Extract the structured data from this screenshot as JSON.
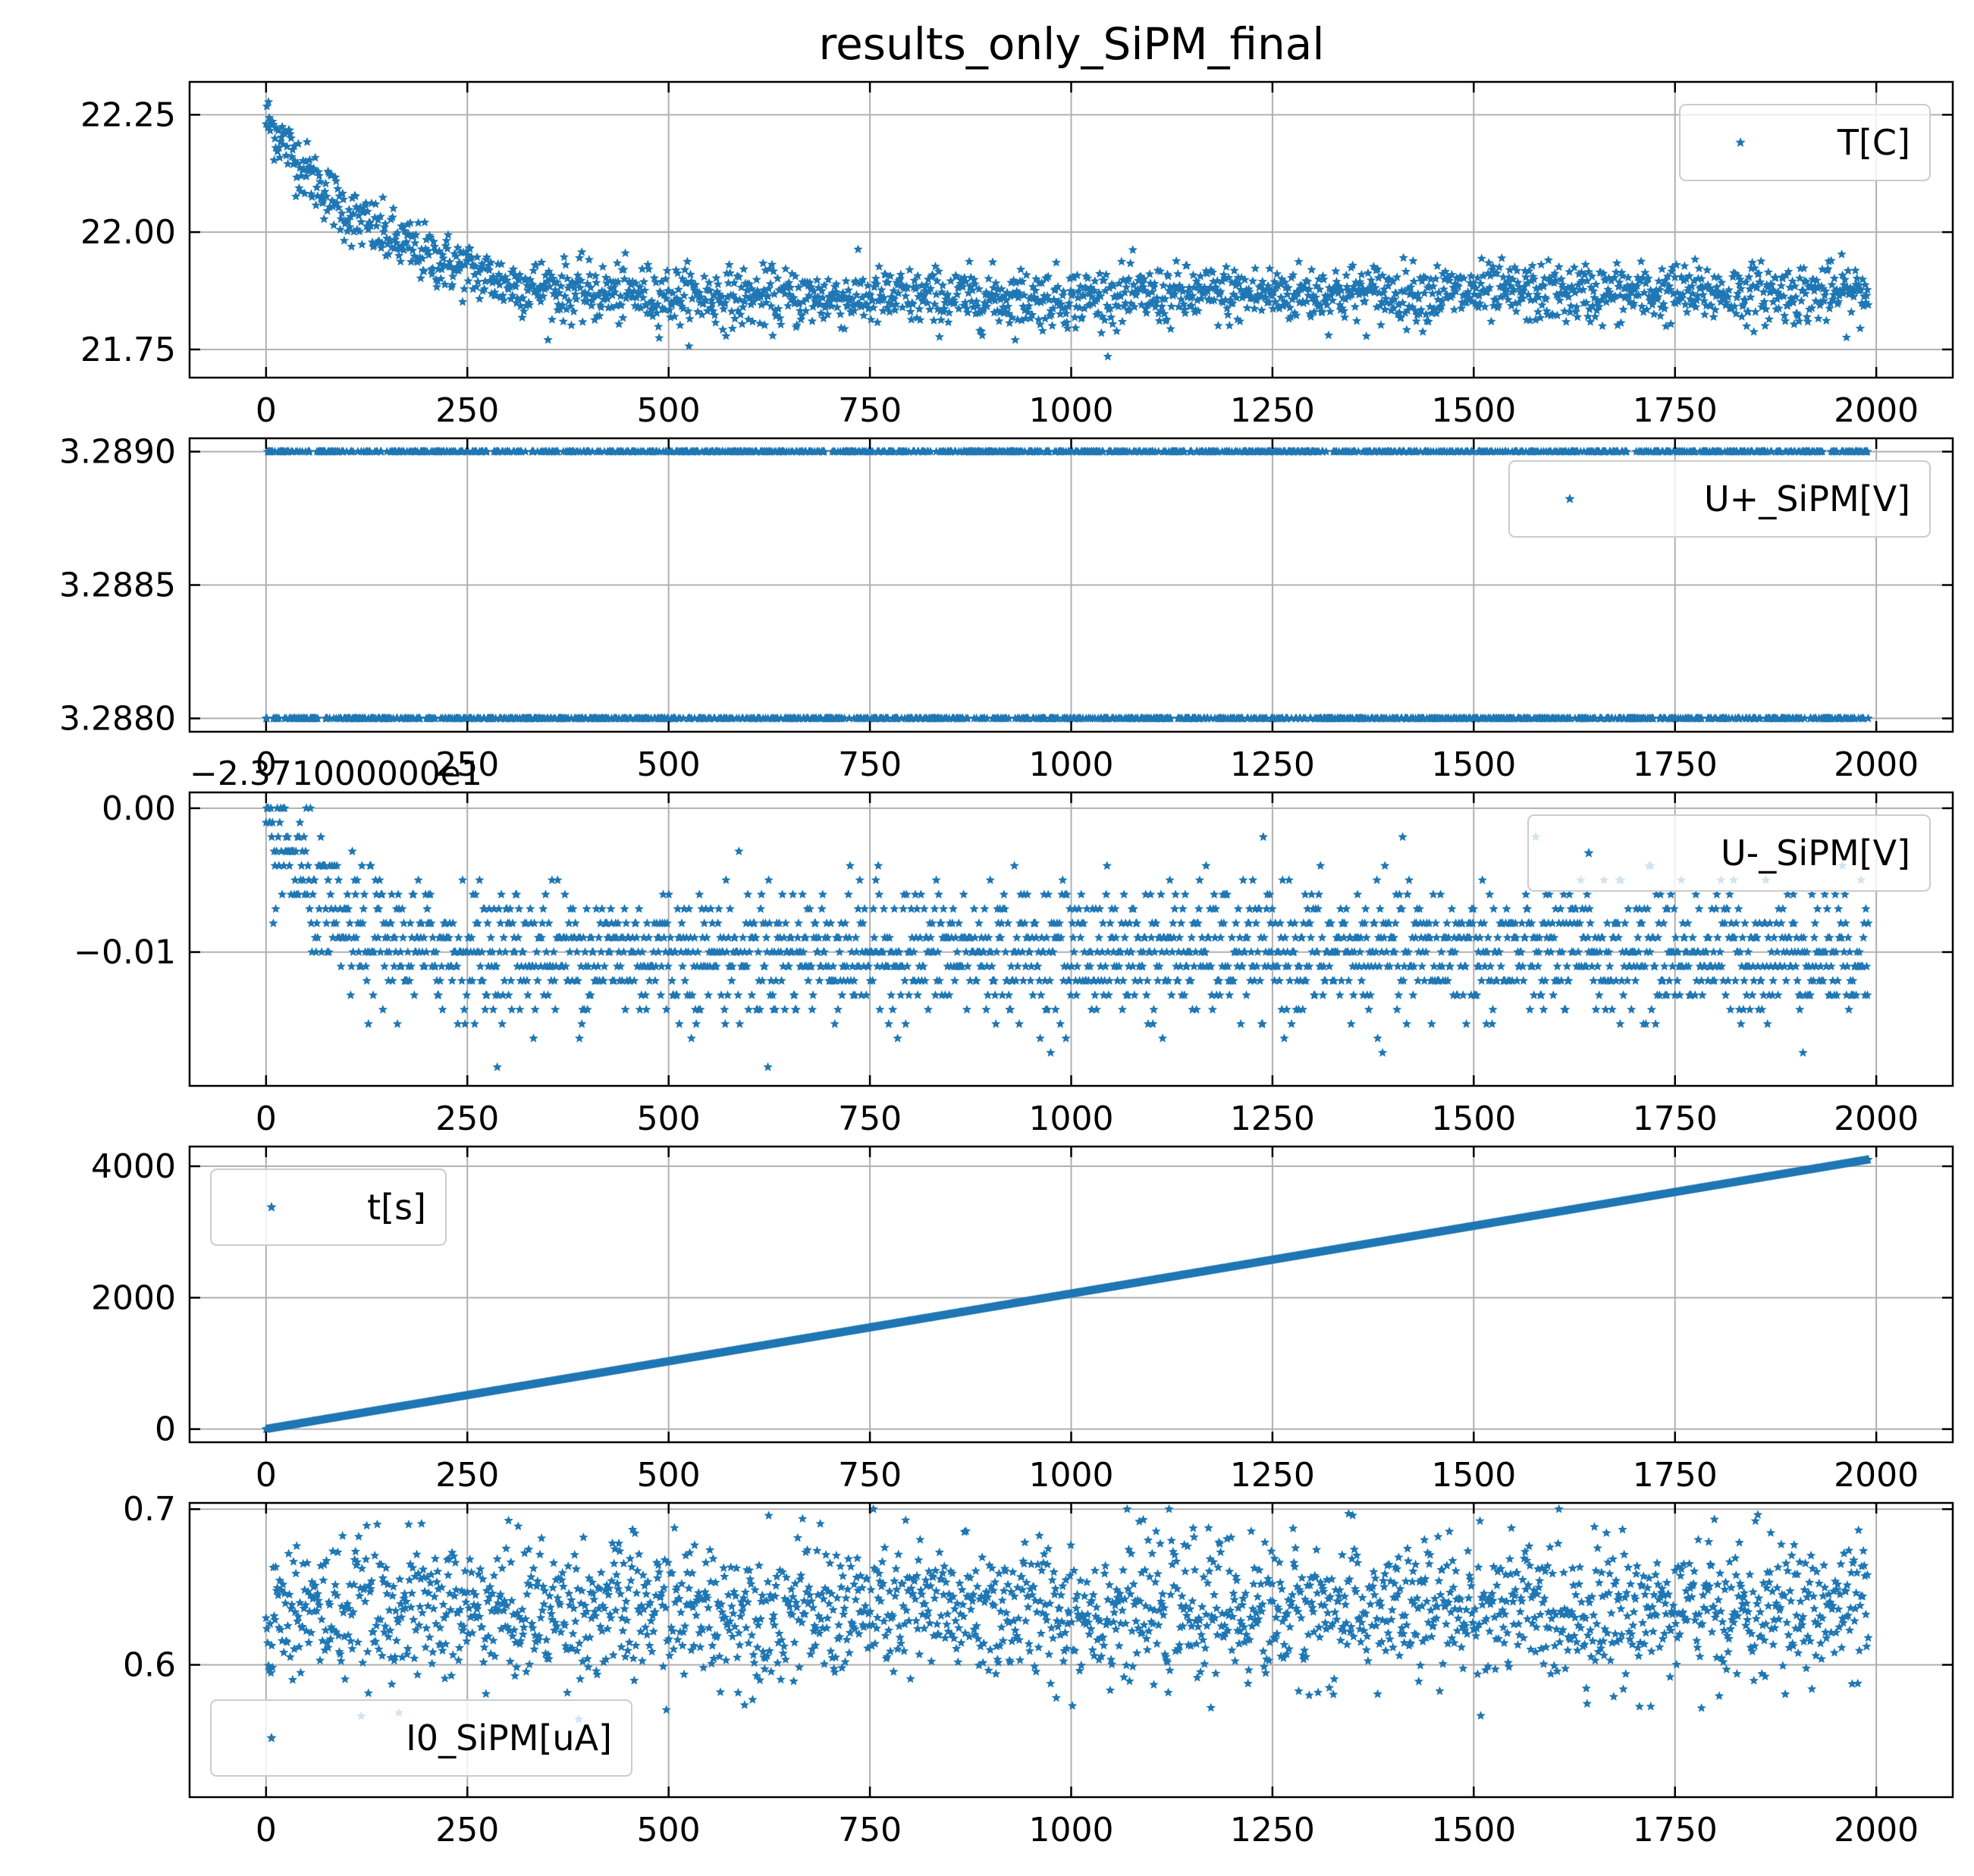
{
  "figure": {
    "title": "results_only_SiPM_final",
    "marker_color": "#1f77b4"
  },
  "chart_data": [
    {
      "type": "scatter",
      "marker": "star",
      "legend": "T[C]",
      "legend_placement": "upper right",
      "grid": true,
      "xlim": [
        -95,
        2095
      ],
      "ylim": [
        21.69,
        22.32
      ],
      "xticks": [
        0,
        250,
        500,
        750,
        1000,
        1250,
        1500,
        1750,
        2000
      ],
      "xtick_labels": [
        "0",
        "250",
        "500",
        "750",
        "1000",
        "1250",
        "1500",
        "1750",
        "2000"
      ],
      "yticks": [
        21.75,
        22.0,
        22.25
      ],
      "ytick_labels": [
        "21.75",
        "22.00",
        "22.25"
      ],
      "n_points": 1990,
      "x_range": [
        0,
        1990
      ],
      "trend": [
        [
          0,
          22.24
        ],
        [
          50,
          22.13
        ],
        [
          100,
          22.04
        ],
        [
          150,
          21.99
        ],
        [
          200,
          21.95
        ],
        [
          250,
          21.92
        ],
        [
          300,
          21.89
        ],
        [
          400,
          21.87
        ],
        [
          600,
          21.86
        ],
        [
          1000,
          21.86
        ],
        [
          1300,
          21.87
        ],
        [
          1990,
          21.87
        ]
      ],
      "noise": 0.045
    },
    {
      "type": "scatter",
      "marker": "star",
      "legend": "U+_SiPM[V]",
      "legend_placement": "upper right",
      "grid": true,
      "xlim": [
        -95,
        2095
      ],
      "ylim": [
        3.28795,
        3.28905
      ],
      "xticks": [
        0,
        250,
        500,
        750,
        1000,
        1250,
        1500,
        1750,
        2000
      ],
      "xtick_labels": [
        "0",
        "250",
        "500",
        "750",
        "1000",
        "1250",
        "1500",
        "1750",
        "2000"
      ],
      "yticks": [
        3.288,
        3.2885,
        3.289
      ],
      "ytick_labels": [
        "3.2880",
        "3.2885",
        "3.2890"
      ],
      "levels": [
        3.288,
        3.289
      ],
      "n_points": 1990,
      "x_range": [
        0,
        1990
      ],
      "lower_level_fraction": 0.5
    },
    {
      "type": "scatter",
      "marker": "star",
      "legend": "U-_SiPM[V]",
      "legend_placement": "upper right",
      "grid": true,
      "offset_text": "−2.371000000e1",
      "xlim": [
        -95,
        2095
      ],
      "ylim": [
        -0.0193,
        0.0011
      ],
      "xticks": [
        0,
        250,
        500,
        750,
        1000,
        1250,
        1500,
        1750,
        2000
      ],
      "xtick_labels": [
        "0",
        "250",
        "500",
        "750",
        "1000",
        "1250",
        "1500",
        "1750",
        "2000"
      ],
      "yticks": [
        -0.01,
        0.0
      ],
      "ytick_labels": [
        "−0.01",
        "0.00"
      ],
      "quantum": 0.001,
      "n_points": 1990,
      "x_range": [
        0,
        1990
      ],
      "trend": [
        [
          0,
          -0.002
        ],
        [
          40,
          -0.004
        ],
        [
          80,
          -0.008
        ],
        [
          150,
          -0.0095
        ],
        [
          300,
          -0.01
        ],
        [
          1990,
          -0.01
        ]
      ],
      "noise": 0.0023,
      "min_value": -0.019,
      "max_value": 0.0
    },
    {
      "type": "scatter",
      "marker": "star",
      "legend": "t[s]",
      "legend_placement": "upper left",
      "grid": true,
      "xlim": [
        -95,
        2095
      ],
      "ylim": [
        -200,
        4300
      ],
      "xticks": [
        0,
        250,
        500,
        750,
        1000,
        1250,
        1500,
        1750,
        2000
      ],
      "xtick_labels": [
        "0",
        "250",
        "500",
        "750",
        "1000",
        "1250",
        "1500",
        "1750",
        "2000"
      ],
      "yticks": [
        0,
        2000,
        4000
      ],
      "ytick_labels": [
        "0",
        "2000",
        "4000"
      ],
      "n_points": 1990,
      "x_range": [
        0,
        1990
      ],
      "y_range": [
        0,
        4100
      ]
    },
    {
      "type": "scatter",
      "marker": "star",
      "legend": "I0_SiPM[uA]",
      "legend_placement": "lower left",
      "grid": true,
      "xlim": [
        -95,
        2095
      ],
      "ylim": [
        0.515,
        0.704
      ],
      "xticks": [
        0,
        250,
        500,
        750,
        1000,
        1250,
        1500,
        1750,
        2000
      ],
      "xtick_labels": [
        "0",
        "250",
        "500",
        "750",
        "1000",
        "1250",
        "1500",
        "1750",
        "2000"
      ],
      "yticks": [
        0.6,
        0.7
      ],
      "ytick_labels": [
        "0.6",
        "0.7"
      ],
      "n_points": 1990,
      "x_range": [
        0,
        1990
      ],
      "trend": [
        [
          0,
          0.635
        ],
        [
          1990,
          0.635
        ]
      ],
      "noise": 0.028,
      "min_value": 0.52,
      "max_value": 0.7
    }
  ]
}
